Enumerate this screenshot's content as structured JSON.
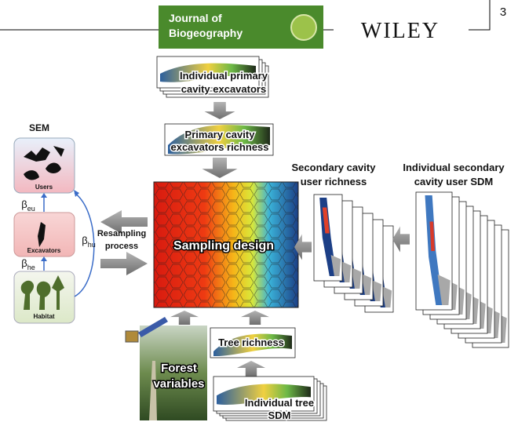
{
  "header": {
    "journal": [
      "Journal of",
      "Biogeography"
    ],
    "publisher": "WILEY",
    "page_number": "3"
  },
  "figure": {
    "sem": {
      "title": "SEM",
      "users": "Users",
      "excavators": "Excavators",
      "habitat": "Habitat",
      "beta_eu": {
        "symbol": "β",
        "subscript": "eu"
      },
      "beta_he": {
        "symbol": "β",
        "subscript": "he"
      },
      "beta_hu": {
        "symbol": "β",
        "subscript": "hu"
      }
    },
    "individual_excavators": [
      "Individual primary",
      "cavity excavators"
    ],
    "excavator_richness": [
      "Primary cavity",
      "excavators richness"
    ],
    "sampling_design": "Sampling design",
    "secondary_richness": [
      "Secondary cavity",
      "user richness"
    ],
    "secondary_sdm": [
      "Individual secondary",
      "cavity user SDM"
    ],
    "resampling": [
      "Resampling",
      "process"
    ],
    "tree_richness": "Tree richness",
    "tree_sdm": [
      "Individual tree",
      "SDM"
    ],
    "forest_variables": [
      "Forest",
      "variables"
    ]
  }
}
